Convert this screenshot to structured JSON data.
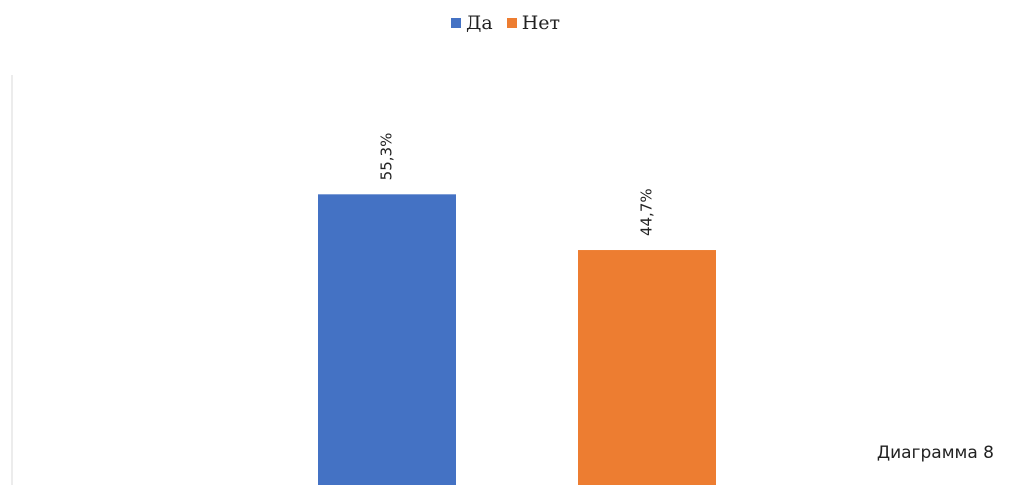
{
  "chart_data": {
    "type": "bar",
    "categories": [
      "Да",
      "Нет"
    ],
    "values": [
      55.3,
      44.7
    ],
    "value_labels": [
      "55,3%",
      "44,7%"
    ],
    "unit": "%",
    "colors": [
      "#4472C4",
      "#ED7D31"
    ],
    "legend": {
      "placement": "top-center",
      "items": [
        {
          "label": "Да",
          "color": "#4472C4"
        },
        {
          "label": "Нет",
          "color": "#ED7D31"
        }
      ]
    },
    "title": "",
    "xlabel": "",
    "ylabel": "",
    "ylim": [
      0,
      78
    ],
    "grid": false
  },
  "caption": "Диаграмма 8"
}
